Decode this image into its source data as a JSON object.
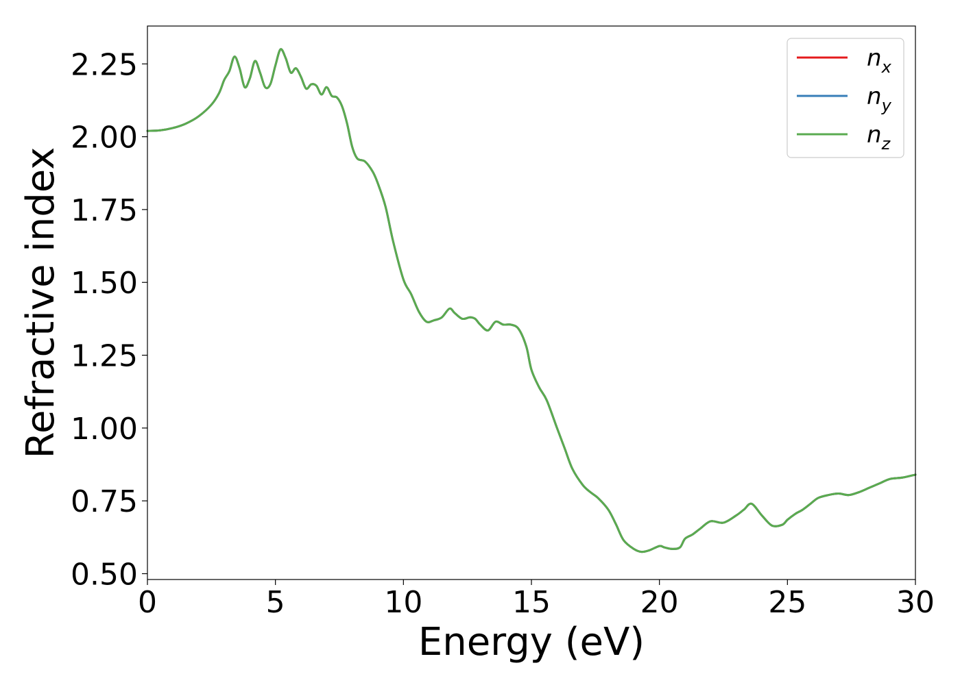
{
  "chart_data": {
    "type": "line",
    "xlabel": "Energy (eV)",
    "ylabel": "Refractive index",
    "xlim": [
      0,
      30
    ],
    "ylim": [
      0.48,
      2.38
    ],
    "xticks": [
      "0",
      "5",
      "10",
      "15",
      "20",
      "25",
      "30"
    ],
    "yticks": [
      "0.50",
      "0.75",
      "1.00",
      "1.25",
      "1.50",
      "1.75",
      "2.00",
      "2.25"
    ],
    "grid": false,
    "legend_position": "top-right",
    "x": [
      0,
      0.5,
      1,
      1.5,
      2,
      2.5,
      2.8,
      3.0,
      3.2,
      3.4,
      3.6,
      3.8,
      4.0,
      4.2,
      4.4,
      4.6,
      4.8,
      5.0,
      5.2,
      5.4,
      5.6,
      5.8,
      6.0,
      6.2,
      6.4,
      6.6,
      6.8,
      7.0,
      7.2,
      7.4,
      7.6,
      7.8,
      8.0,
      8.2,
      8.5,
      8.8,
      9.0,
      9.3,
      9.6,
      10.0,
      10.3,
      10.6,
      10.9,
      11.2,
      11.5,
      11.8,
      12.0,
      12.3,
      12.6,
      12.8,
      13.0,
      13.3,
      13.6,
      13.9,
      14.2,
      14.5,
      14.8,
      15.0,
      15.3,
      15.6,
      16.0,
      16.3,
      16.6,
      17.0,
      17.3,
      17.6,
      18.0,
      18.3,
      18.6,
      19.0,
      19.3,
      19.6,
      20.0,
      20.2,
      20.5,
      20.8,
      21.0,
      21.3,
      21.6,
      22.0,
      22.5,
      23.0,
      23.3,
      23.6,
      24.0,
      24.4,
      24.8,
      25.0,
      25.3,
      25.6,
      25.9,
      26.2,
      26.6,
      27.0,
      27.4,
      27.8,
      28.2,
      28.6,
      29.0,
      29.5,
      30.0
    ],
    "series": [
      {
        "name": "n_x",
        "color": "#e41a1c",
        "y": [
          2.02,
          2.022,
          2.03,
          2.045,
          2.07,
          2.11,
          2.15,
          2.195,
          2.225,
          2.275,
          2.235,
          2.17,
          2.2,
          2.26,
          2.22,
          2.17,
          2.18,
          2.245,
          2.3,
          2.27,
          2.22,
          2.235,
          2.205,
          2.165,
          2.18,
          2.175,
          2.145,
          2.17,
          2.14,
          2.135,
          2.105,
          2.045,
          1.965,
          1.925,
          1.915,
          1.88,
          1.84,
          1.76,
          1.64,
          1.51,
          1.46,
          1.4,
          1.365,
          1.37,
          1.38,
          1.41,
          1.395,
          1.375,
          1.38,
          1.375,
          1.355,
          1.335,
          1.365,
          1.355,
          1.355,
          1.34,
          1.28,
          1.2,
          1.14,
          1.095,
          1.0,
          0.93,
          0.86,
          0.805,
          0.78,
          0.76,
          0.72,
          0.67,
          0.615,
          0.585,
          0.575,
          0.58,
          0.595,
          0.59,
          0.585,
          0.59,
          0.62,
          0.635,
          0.655,
          0.68,
          0.675,
          0.7,
          0.72,
          0.74,
          0.7,
          0.665,
          0.668,
          0.685,
          0.705,
          0.72,
          0.74,
          0.76,
          0.77,
          0.775,
          0.77,
          0.78,
          0.795,
          0.81,
          0.825,
          0.83,
          0.84
        ]
      },
      {
        "name": "n_y",
        "color": "#377eb8",
        "y": [
          2.02,
          2.022,
          2.03,
          2.045,
          2.07,
          2.11,
          2.15,
          2.195,
          2.225,
          2.275,
          2.235,
          2.17,
          2.2,
          2.26,
          2.22,
          2.17,
          2.18,
          2.245,
          2.3,
          2.27,
          2.22,
          2.235,
          2.205,
          2.165,
          2.18,
          2.175,
          2.145,
          2.17,
          2.14,
          2.135,
          2.105,
          2.045,
          1.965,
          1.925,
          1.915,
          1.88,
          1.84,
          1.76,
          1.64,
          1.51,
          1.46,
          1.4,
          1.365,
          1.37,
          1.38,
          1.41,
          1.395,
          1.375,
          1.38,
          1.375,
          1.355,
          1.335,
          1.365,
          1.355,
          1.355,
          1.34,
          1.28,
          1.2,
          1.14,
          1.095,
          1.0,
          0.93,
          0.86,
          0.805,
          0.78,
          0.76,
          0.72,
          0.67,
          0.615,
          0.585,
          0.575,
          0.58,
          0.595,
          0.59,
          0.585,
          0.59,
          0.62,
          0.635,
          0.655,
          0.68,
          0.675,
          0.7,
          0.72,
          0.74,
          0.7,
          0.665,
          0.668,
          0.685,
          0.705,
          0.72,
          0.74,
          0.76,
          0.77,
          0.775,
          0.77,
          0.78,
          0.795,
          0.81,
          0.825,
          0.83,
          0.84
        ]
      },
      {
        "name": "n_z",
        "color": "#5aab4f",
        "y": [
          2.02,
          2.022,
          2.03,
          2.045,
          2.07,
          2.11,
          2.15,
          2.195,
          2.225,
          2.275,
          2.235,
          2.17,
          2.2,
          2.26,
          2.22,
          2.17,
          2.18,
          2.245,
          2.3,
          2.27,
          2.22,
          2.235,
          2.205,
          2.165,
          2.18,
          2.175,
          2.145,
          2.17,
          2.14,
          2.135,
          2.105,
          2.045,
          1.965,
          1.925,
          1.915,
          1.88,
          1.84,
          1.76,
          1.64,
          1.51,
          1.46,
          1.4,
          1.365,
          1.37,
          1.38,
          1.41,
          1.395,
          1.375,
          1.38,
          1.375,
          1.355,
          1.335,
          1.365,
          1.355,
          1.355,
          1.34,
          1.28,
          1.2,
          1.14,
          1.095,
          1.0,
          0.93,
          0.86,
          0.805,
          0.78,
          0.76,
          0.72,
          0.67,
          0.615,
          0.585,
          0.575,
          0.58,
          0.595,
          0.59,
          0.585,
          0.59,
          0.62,
          0.635,
          0.655,
          0.68,
          0.675,
          0.7,
          0.72,
          0.74,
          0.7,
          0.665,
          0.668,
          0.685,
          0.705,
          0.72,
          0.74,
          0.76,
          0.77,
          0.775,
          0.77,
          0.78,
          0.795,
          0.81,
          0.825,
          0.83,
          0.84
        ]
      }
    ]
  }
}
